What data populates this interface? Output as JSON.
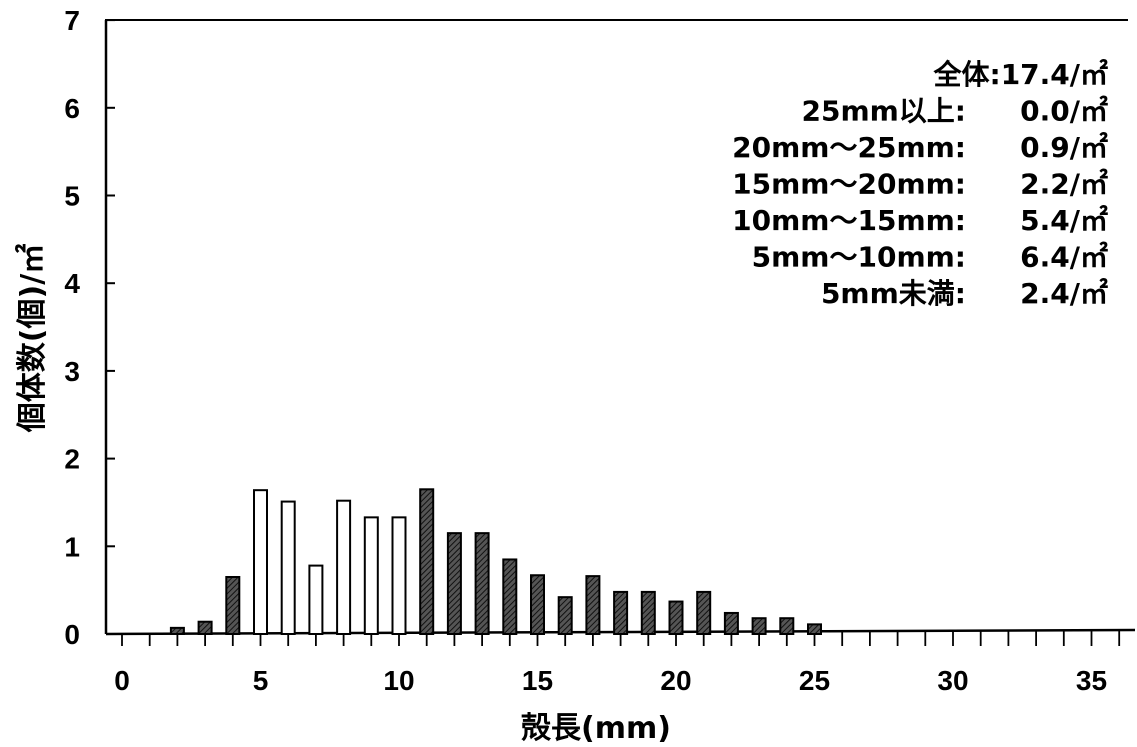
{
  "chart_data": {
    "type": "bar",
    "xlabel": "殻長(mm)",
    "ylabel": "個体数(個)/㎡",
    "xlim": [
      0,
      36
    ],
    "ylim": [
      0,
      7
    ],
    "x_ticks": [
      "0",
      "5",
      "10",
      "15",
      "20",
      "25",
      "30",
      "35"
    ],
    "y_ticks": [
      "0",
      "1",
      "2",
      "3",
      "4",
      "5",
      "6",
      "7"
    ],
    "grid": false,
    "series_styles": {
      "hatched": "dark hatched bars",
      "open": "white bars"
    },
    "bars": [
      {
        "x": 2,
        "value": 0.07,
        "style": "hatched"
      },
      {
        "x": 3,
        "value": 0.14,
        "style": "hatched"
      },
      {
        "x": 4,
        "value": 0.65,
        "style": "hatched"
      },
      {
        "x": 5,
        "value": 1.64,
        "style": "open"
      },
      {
        "x": 6,
        "value": 1.51,
        "style": "open"
      },
      {
        "x": 7,
        "value": 0.78,
        "style": "open"
      },
      {
        "x": 8,
        "value": 1.52,
        "style": "open"
      },
      {
        "x": 9,
        "value": 1.33,
        "style": "open"
      },
      {
        "x": 10,
        "value": 1.33,
        "style": "open"
      },
      {
        "x": 11,
        "value": 1.65,
        "style": "hatched"
      },
      {
        "x": 12,
        "value": 1.15,
        "style": "hatched"
      },
      {
        "x": 13,
        "value": 1.15,
        "style": "hatched"
      },
      {
        "x": 14,
        "value": 0.85,
        "style": "hatched"
      },
      {
        "x": 15,
        "value": 0.67,
        "style": "hatched"
      },
      {
        "x": 16,
        "value": 0.42,
        "style": "hatched"
      },
      {
        "x": 17,
        "value": 0.66,
        "style": "hatched"
      },
      {
        "x": 18,
        "value": 0.48,
        "style": "hatched"
      },
      {
        "x": 19,
        "value": 0.48,
        "style": "hatched"
      },
      {
        "x": 20,
        "value": 0.37,
        "style": "hatched"
      },
      {
        "x": 21,
        "value": 0.48,
        "style": "hatched"
      },
      {
        "x": 22,
        "value": 0.24,
        "style": "hatched"
      },
      {
        "x": 23,
        "value": 0.18,
        "style": "hatched"
      },
      {
        "x": 24,
        "value": 0.18,
        "style": "hatched"
      },
      {
        "x": 25,
        "value": 0.11,
        "style": "hatched"
      }
    ],
    "annotations": [
      {
        "label": "全体:",
        "value": "17.4/㎡"
      },
      {
        "label": "25mm以上:",
        "value": "0.0/㎡"
      },
      {
        "label": "20mm～25mm:",
        "value": "0.9/㎡"
      },
      {
        "label": "15mm～20mm:",
        "value": "2.2/㎡"
      },
      {
        "label": "10mm～15mm:",
        "value": "5.4/㎡"
      },
      {
        "label": "5mm～10mm:",
        "value": "6.4/㎡"
      },
      {
        "label": "5mm未満:",
        "value": "2.4/㎡"
      }
    ],
    "annotation_placement": "top-right"
  }
}
